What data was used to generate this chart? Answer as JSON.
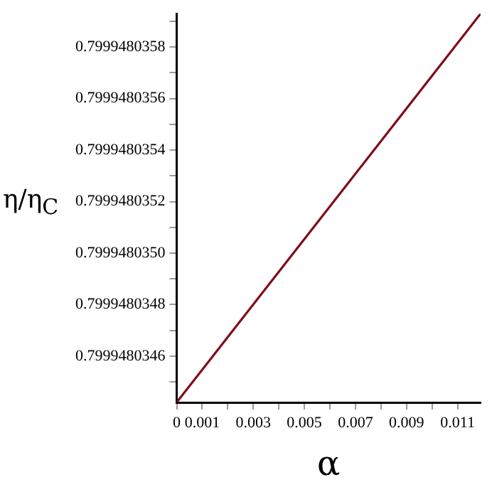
{
  "chart_data": {
    "type": "line",
    "xlabel": "α",
    "ylabel": "η/η$_{C}$",
    "series": [
      {
        "color": "#800d1a",
        "x": [
          0,
          0.0119
        ],
        "values": [
          0.79994803442,
          0.79994803593
        ]
      }
    ],
    "xlim": [
      0,
      0.0119
    ],
    "xticks": [
      0,
      {
        "value": 0.001,
        "label": "0.001"
      },
      {
        "value": 0.002,
        "label": null
      },
      {
        "value": 0.003,
        "label": "0.003"
      },
      {
        "value": 0.004,
        "label": null
      },
      {
        "value": 0.005,
        "label": "0.005"
      },
      {
        "value": 0.006,
        "label": null
      },
      {
        "value": 0.007,
        "label": "0.007"
      },
      {
        "value": 0.008,
        "label": null
      },
      {
        "value": 0.009,
        "label": "0.009"
      },
      {
        "value": 0.01,
        "label": null
      },
      {
        "value": 0.011,
        "label": "0.011"
      }
    ],
    "ylim": [
      0.79994803442,
      0.79994803593
    ],
    "yticks": [
      {
        "value": 0.7999480345,
        "label": null
      },
      0.7999480346,
      {
        "value": 0.7999480347,
        "label": null
      },
      0.7999480348,
      {
        "value": 0.7999480349,
        "label": null
      },
      {
        "value": 0.799948035,
        "label": "0.7999480350"
      },
      {
        "value": 0.7999480351,
        "label": null
      },
      0.7999480352,
      {
        "value": 0.7999480353,
        "label": null
      },
      0.7999480354,
      {
        "value": 0.7999480355,
        "label": null
      },
      0.7999480356,
      {
        "value": 0.7999480357,
        "label": null
      },
      0.7999480358,
      {
        "value": 0.7999480359,
        "label": null
      }
    ],
    "grid": false,
    "legend": false,
    "marker": "none",
    "line_style": "solid"
  }
}
